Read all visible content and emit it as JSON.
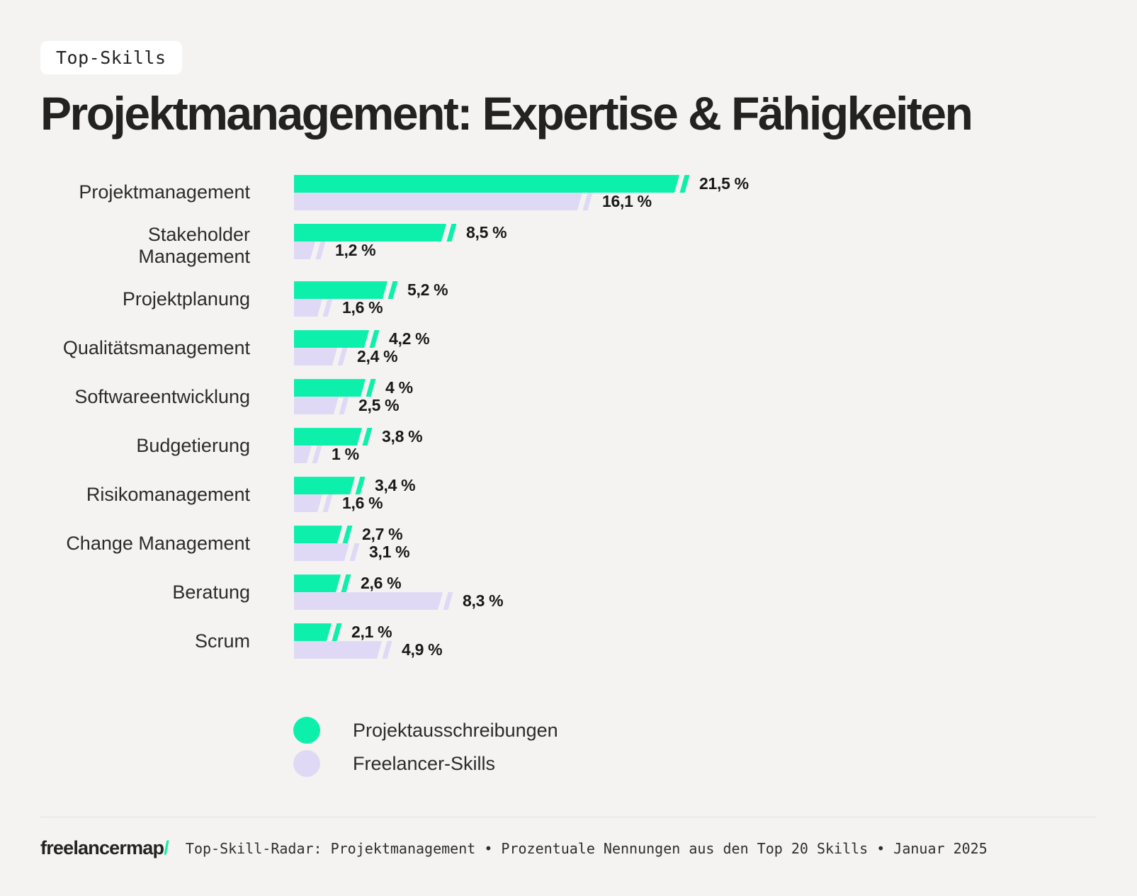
{
  "badge": {
    "label": "Top-Skills"
  },
  "title": "Projektmanagement: Expertise & Fähigkeiten",
  "colors": {
    "mint": "#0DF0AC",
    "lavender": "#DFD9F6",
    "background": "#F4F3F1",
    "text": "#1E1E1E"
  },
  "chart_data": {
    "type": "bar",
    "orientation": "horizontal",
    "unit": "%",
    "xlim": [
      0,
      22
    ],
    "grid": false,
    "categories": [
      "Projektmanagement",
      "Stakeholder Management",
      "Projektplanung",
      "Qualitätsmanagement",
      "Softwareentwicklung",
      "Budgetierung",
      "Risikomanagement",
      "Change Management",
      "Beratung",
      "Scrum"
    ],
    "series": [
      {
        "name": "Projektausschreibungen",
        "color": "#0DF0AC",
        "values": [
          21.5,
          8.5,
          5.2,
          4.2,
          4,
          3.8,
          3.4,
          2.7,
          2.6,
          2.1
        ],
        "labels": [
          "21,5 %",
          "8,5 %",
          "5,2 %",
          "4,2 %",
          "4 %",
          "3,8 %",
          "3,4 %",
          "2,7 %",
          "2,6 %",
          "2,1 %"
        ]
      },
      {
        "name": "Freelancer-Skills",
        "color": "#DFD9F6",
        "values": [
          16.1,
          1.2,
          1.6,
          2.4,
          2.5,
          1,
          1.6,
          3.1,
          8.3,
          4.9
        ],
        "labels": [
          "16,1 %",
          "1,2 %",
          "1,6 %",
          "2,4 %",
          "2,5 %",
          "1 %",
          "1,6 %",
          "3,1 %",
          "8,3 %",
          "4,9 %"
        ]
      }
    ]
  },
  "legend": {
    "items": [
      {
        "label": "Projektausschreibungen",
        "color": "#0DF0AC"
      },
      {
        "label": "Freelancer-Skills",
        "color": "#DFD9F6"
      }
    ]
  },
  "footer": {
    "logo_text": "freelancermap",
    "logo_slash": "/",
    "caption": "Top-Skill-Radar: Projektmanagement • Prozentuale Nennungen aus den Top 20 Skills • Januar 2025"
  }
}
